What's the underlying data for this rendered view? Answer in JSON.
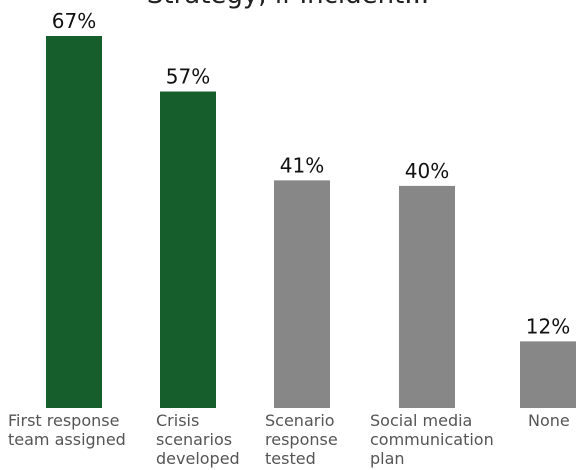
{
  "chart_data": {
    "type": "bar",
    "title": "Strategy, if Incident...",
    "categories": [
      [
        "First response",
        "team assigned"
      ],
      [
        "Crisis",
        "scenarios",
        "developed"
      ],
      [
        "Scenario",
        "response",
        "tested"
      ],
      [
        "Social media",
        "communication",
        "plan"
      ],
      [
        "None"
      ]
    ],
    "values": [
      67,
      57,
      41,
      40,
      12
    ],
    "value_labels": [
      "67%",
      "57%",
      "41%",
      "40%",
      "12%"
    ],
    "colors": [
      "#165f2c",
      "#165f2c",
      "#878787",
      "#878787",
      "#878787"
    ],
    "ylim": [
      0,
      70
    ],
    "grid": false,
    "legend": "none"
  }
}
